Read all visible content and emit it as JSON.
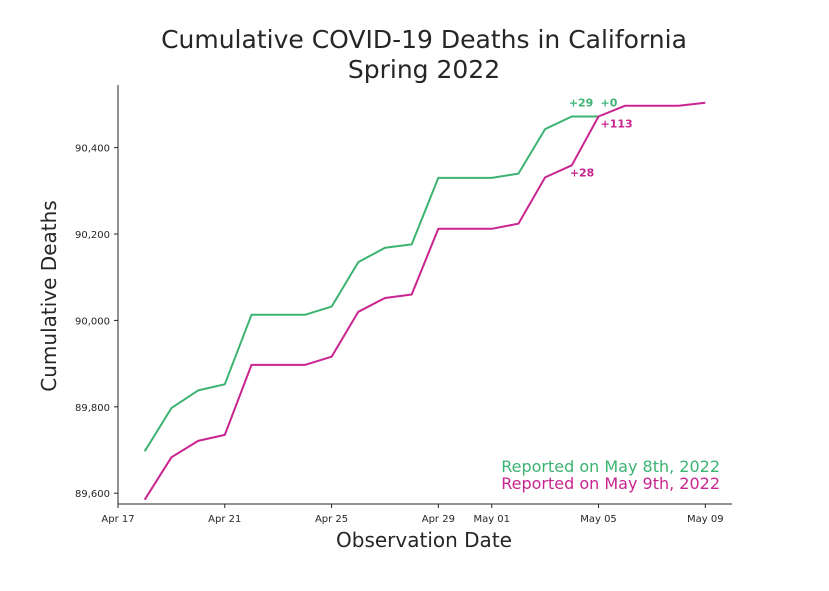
{
  "chart_data": {
    "type": "line",
    "title": "Cumulative COVID-19 Deaths in California",
    "subtitle": "Spring 2022",
    "xlabel": "Observation Date",
    "ylabel": "Cumulative Deaths",
    "x_ticks": [
      "Apr 17",
      "Apr 21",
      "Apr 25",
      "Apr 29",
      "May 01",
      "May 05",
      "May 09"
    ],
    "y_ticks": [
      "89,600",
      "89,800",
      "90,000",
      "90,200",
      "90,400"
    ],
    "ylim": [
      89575,
      90545
    ],
    "xlim": [
      "2022-04-17",
      "2022-05-10"
    ],
    "grid": false,
    "legend_position": "lower-right",
    "series": [
      {
        "name": "Reported on May 8th, 2022",
        "color": "#3cb371",
        "x": [
          "2022-04-18",
          "2022-04-19",
          "2022-04-20",
          "2022-04-21",
          "2022-04-22",
          "2022-04-23",
          "2022-04-24",
          "2022-04-25",
          "2022-04-26",
          "2022-04-27",
          "2022-04-28",
          "2022-04-29",
          "2022-04-30",
          "2022-05-01",
          "2022-05-02",
          "2022-05-03",
          "2022-05-04",
          "2022-05-05"
        ],
        "values": [
          89697,
          89797,
          89838,
          89852,
          90013,
          90013,
          90013,
          90032,
          90135,
          90168,
          90176,
          90330,
          90330,
          90330,
          90340,
          90443,
          90472,
          90472
        ]
      },
      {
        "name": "Reported on May 9th, 2022",
        "color": "#c9248f",
        "x": [
          "2022-04-18",
          "2022-04-19",
          "2022-04-20",
          "2022-04-21",
          "2022-04-22",
          "2022-04-23",
          "2022-04-24",
          "2022-04-25",
          "2022-04-26",
          "2022-04-27",
          "2022-04-28",
          "2022-04-29",
          "2022-04-30",
          "2022-05-01",
          "2022-05-02",
          "2022-05-03",
          "2022-05-04",
          "2022-05-05",
          "2022-05-06",
          "2022-05-07",
          "2022-05-08",
          "2022-05-09"
        ],
        "values": [
          89585,
          89683,
          89721,
          89735,
          89897,
          89897,
          89897,
          89916,
          90020,
          90052,
          90060,
          90212,
          90212,
          90212,
          90224,
          90331,
          90359,
          90472,
          90497,
          90497,
          90497,
          90504
        ]
      }
    ],
    "annotations": [
      {
        "text": "+29",
        "color": "#3cb371",
        "x": "2022-05-04",
        "y": 90472
      },
      {
        "text": "+0",
        "color": "#3cb371",
        "x": "2022-05-05",
        "y": 90472
      },
      {
        "text": "+113",
        "color": "#c9248f",
        "x": "2022-05-05",
        "y": 90472
      },
      {
        "text": "+28",
        "color": "#c9248f",
        "x": "2022-05-04",
        "y": 90359
      }
    ]
  }
}
